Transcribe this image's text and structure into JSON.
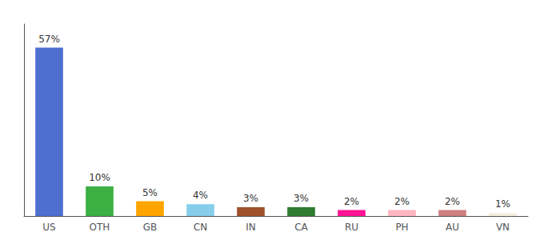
{
  "chart_data": {
    "type": "bar",
    "categories": [
      "US",
      "OTH",
      "GB",
      "CN",
      "IN",
      "CA",
      "RU",
      "PH",
      "AU",
      "VN"
    ],
    "values": [
      57,
      10,
      5,
      4,
      3,
      3,
      2,
      2,
      2,
      1
    ],
    "value_labels": [
      "57%",
      "10%",
      "5%",
      "4%",
      "3%",
      "3%",
      "2%",
      "2%",
      "2%",
      "1%"
    ],
    "colors": [
      "#4F6FD0",
      "#3CB043",
      "#FFA500",
      "#87CEEB",
      "#A0522D",
      "#2E7D32",
      "#FF1493",
      "#FFB6C1",
      "#CD8080",
      "#F5F0DC"
    ],
    "ylim": [
      0,
      65
    ],
    "data_labels": true,
    "tick_labels": "x",
    "grid": false
  }
}
